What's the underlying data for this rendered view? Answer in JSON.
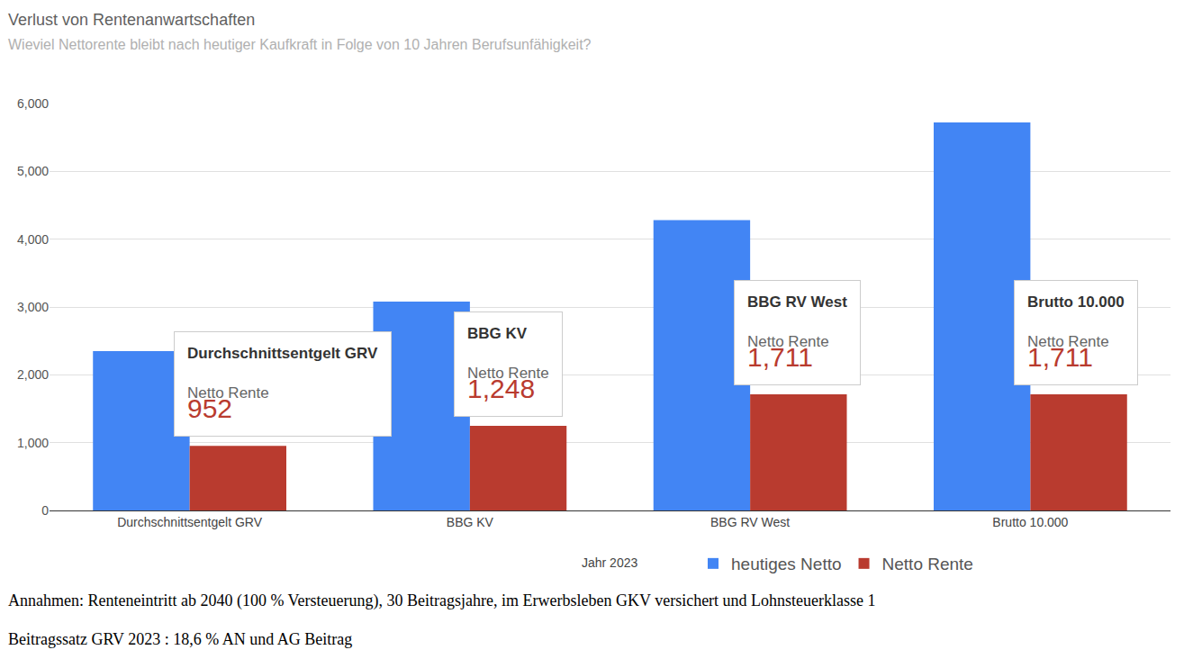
{
  "chart_data": {
    "type": "bar",
    "title": "Verlust von Rentenanwartschaften",
    "subtitle": "Wieviel Nettorente bleibt nach heutiger Kaufkraft in Folge von 10 Jahren Berufsunfähigkeit?",
    "x_label": "Jahr 2023",
    "categories": [
      "Durchschnittsentgelt GRV",
      "BBG KV",
      "BBG RV West",
      "Brutto 10.000"
    ],
    "series": [
      {
        "name": "heutiges Netto",
        "color": "#4285f4",
        "values": [
          2350,
          3080,
          4280,
          5720
        ]
      },
      {
        "name": "Netto Rente",
        "color": "#b93b2f",
        "values": [
          952,
          1248,
          1711,
          1711
        ],
        "value_labels": [
          "952",
          "1,248",
          "1,711",
          "1,711"
        ]
      }
    ],
    "ylim": [
      0,
      6000
    ],
    "yticks": [
      0,
      {
        "value": 1000,
        "label": "1,000"
      },
      {
        "value": 2000,
        "label": "2,000"
      },
      {
        "value": 3000,
        "label": "3,000"
      },
      {
        "value": 4000,
        "label": "4,000"
      },
      {
        "value": 5000,
        "label": "5,000"
      },
      {
        "value": 6000,
        "label": "6,000"
      }
    ],
    "grid": true,
    "legend": "bottom",
    "data_labels": true,
    "annotations": [
      "Annahmen: Renteneintritt ab 2040 (100 % Versteuerung), 30 Beitragsjahre, im Erwerbsleben GKV versichert und Lohnsteuerklasse 1",
      "Beitragssatz GRV 2023 : 18,6 % AN und AG Beitrag"
    ]
  }
}
